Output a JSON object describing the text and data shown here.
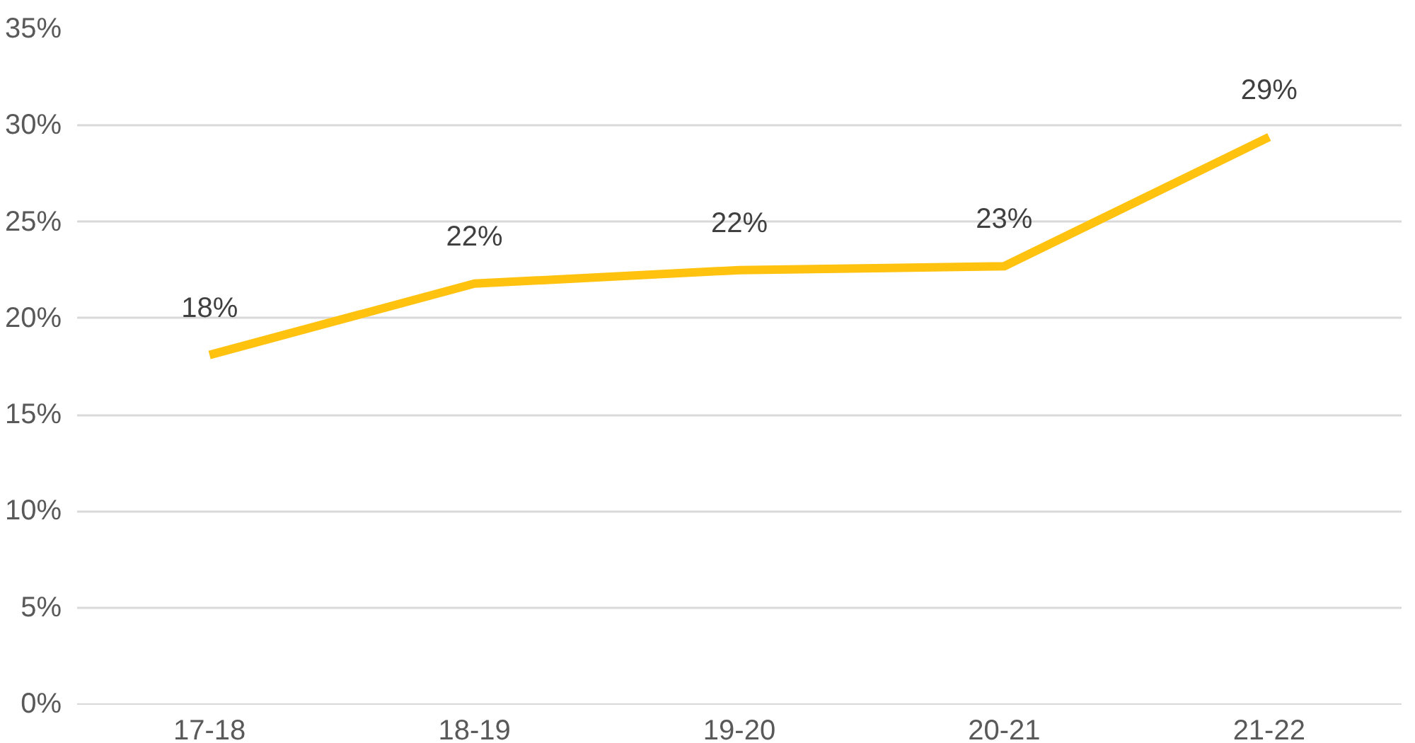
{
  "chart_data": {
    "type": "line",
    "categories": [
      "17-18",
      "18-19",
      "19-20",
      "20-21",
      "21-22"
    ],
    "series": [
      {
        "color": "#ffc20e",
        "values": [
          18.1,
          21.8,
          22.5,
          22.7,
          29.4
        ],
        "value_labels": [
          "18%",
          "22%",
          "22%",
          "23%",
          "29%"
        ]
      }
    ],
    "ylim": [
      0,
      35
    ],
    "yticks": [
      {
        "value": 0,
        "label": "0%"
      },
      {
        "value": 5,
        "label": "5%"
      },
      {
        "value": 10,
        "label": "10%"
      },
      {
        "value": 15,
        "label": "15%"
      },
      {
        "value": 20,
        "label": "20%"
      },
      {
        "value": 25,
        "label": "25%"
      },
      {
        "value": 30,
        "label": "30%"
      },
      {
        "value": 35,
        "label": "35%"
      }
    ],
    "grid": "y",
    "marker": "none",
    "line_style": "solid"
  }
}
